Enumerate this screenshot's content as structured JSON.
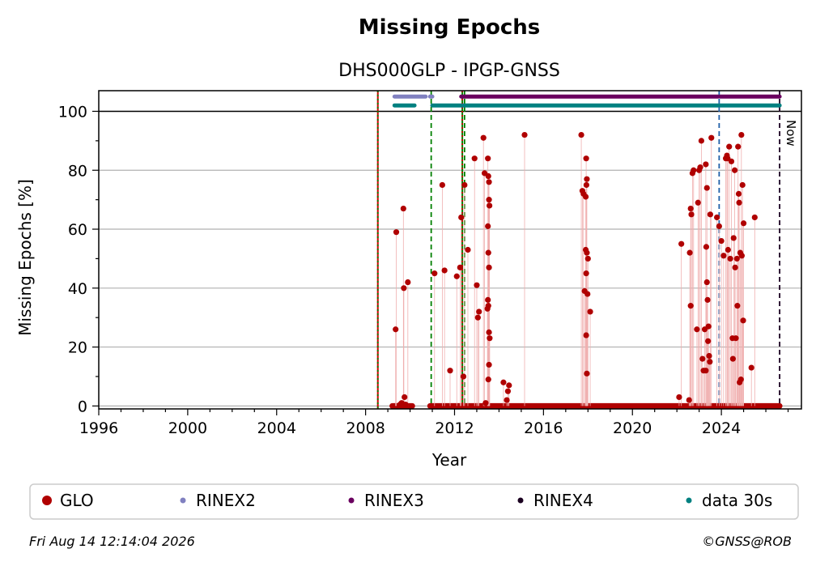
{
  "chart_data": {
    "type": "scatter",
    "title": "Missing Epochs",
    "subtitle": "DHS000GLP - IPGP-GNSS",
    "xlabel": "Year",
    "ylabel": "Missing Epochs [%]",
    "xlim": [
      1996,
      2027.6
    ],
    "ylim": [
      -1,
      107
    ],
    "xticks": [
      1996,
      2000,
      2004,
      2008,
      2012,
      2016,
      2020,
      2024
    ],
    "yticks": [
      0,
      20,
      40,
      60,
      80,
      100
    ],
    "grid": "y",
    "legend_position": "bottom",
    "now_label": "Now",
    "now_year": 2026.62,
    "footer_date": "Fri Aug 14 12:14:04 2026",
    "footer_credit": "©GNSS@ROB",
    "colors": {
      "glo": "#b00000",
      "rinex2": "#8080c0",
      "rinex3": "#6a005f",
      "rinex4": "#1a0020",
      "data30s": "#008080",
      "red_line": "#cc0000",
      "green_line": "#008000",
      "blue_line": "#1f5fa8"
    },
    "vertical_lines": [
      {
        "year": 2008.55,
        "style": "solid",
        "color": "red_line"
      },
      {
        "year": 2008.55,
        "style": "dotted",
        "color": "green_line"
      },
      {
        "year": 2010.95,
        "style": "dashed",
        "color": "green_line"
      },
      {
        "year": 2012.35,
        "style": "solid",
        "color": "green_line"
      },
      {
        "year": 2012.45,
        "style": "dashed",
        "color": "green_line"
      },
      {
        "year": 2012.35,
        "style": "dotted",
        "color": "red_line"
      },
      {
        "year": 2023.9,
        "style": "dashed",
        "color": "blue_line"
      },
      {
        "year": 2026.62,
        "style": "dashed",
        "color": "rinex4"
      }
    ],
    "bars": [
      {
        "name": "RINEX2",
        "y": 105,
        "ranges": [
          [
            2009.3,
            2010.7
          ],
          [
            2010.9,
            2011.0
          ]
        ]
      },
      {
        "name": "RINEX3",
        "y": 105,
        "ranges": [
          [
            2012.3,
            2023.85
          ],
          [
            2023.95,
            2026.62
          ]
        ]
      },
      {
        "name": "data 30s",
        "y": 102,
        "ranges": [
          [
            2009.3,
            2010.2
          ],
          [
            2011.0,
            2023.85
          ],
          [
            2023.95,
            2026.62
          ]
        ]
      }
    ],
    "zero_ranges": [
      [
        2009.2,
        2010.1
      ],
      [
        2010.9,
        2026.62
      ]
    ],
    "series": [
      {
        "name": "GLO",
        "points": [
          [
            2009.35,
            26
          ],
          [
            2009.38,
            59
          ],
          [
            2009.55,
            0.5
          ],
          [
            2009.62,
            1
          ],
          [
            2009.7,
            67
          ],
          [
            2009.72,
            40
          ],
          [
            2009.75,
            3
          ],
          [
            2009.8,
            0.5
          ],
          [
            2009.9,
            42
          ],
          [
            2011.1,
            45
          ],
          [
            2011.45,
            75
          ],
          [
            2011.55,
            46
          ],
          [
            2011.8,
            12
          ],
          [
            2012.1,
            44
          ],
          [
            2012.25,
            47
          ],
          [
            2012.3,
            64
          ],
          [
            2012.4,
            10
          ],
          [
            2012.45,
            75
          ],
          [
            2012.6,
            53
          ],
          [
            2012.9,
            84
          ],
          [
            2013.0,
            41
          ],
          [
            2013.05,
            30
          ],
          [
            2013.1,
            32
          ],
          [
            2013.3,
            91
          ],
          [
            2013.35,
            79
          ],
          [
            2013.4,
            1
          ],
          [
            2013.5,
            84
          ],
          [
            2013.52,
            78
          ],
          [
            2013.55,
            76
          ],
          [
            2013.55,
            70
          ],
          [
            2013.57,
            68
          ],
          [
            2013.5,
            61
          ],
          [
            2013.52,
            52
          ],
          [
            2013.55,
            47
          ],
          [
            2013.5,
            36
          ],
          [
            2013.52,
            34
          ],
          [
            2013.48,
            33
          ],
          [
            2013.55,
            25
          ],
          [
            2013.58,
            23
          ],
          [
            2013.55,
            14
          ],
          [
            2013.52,
            9
          ],
          [
            2014.2,
            8
          ],
          [
            2014.35,
            2
          ],
          [
            2014.4,
            5
          ],
          [
            2014.45,
            7
          ],
          [
            2015.15,
            92
          ],
          [
            2017.7,
            92
          ],
          [
            2017.75,
            73
          ],
          [
            2017.8,
            72
          ],
          [
            2017.85,
            39
          ],
          [
            2017.9,
            53
          ],
          [
            2017.92,
            84
          ],
          [
            2017.95,
            77
          ],
          [
            2017.93,
            75
          ],
          [
            2017.9,
            71
          ],
          [
            2017.95,
            52
          ],
          [
            2017.92,
            45
          ],
          [
            2017.98,
            38
          ],
          [
            2018.0,
            50
          ],
          [
            2017.92,
            24
          ],
          [
            2017.95,
            11
          ],
          [
            2018.1,
            32
          ],
          [
            2022.1,
            3
          ],
          [
            2022.2,
            55
          ],
          [
            2022.55,
            2
          ],
          [
            2022.58,
            52
          ],
          [
            2022.62,
            67
          ],
          [
            2022.65,
            65
          ],
          [
            2022.7,
            79
          ],
          [
            2022.62,
            34
          ],
          [
            2022.75,
            80
          ],
          [
            2022.9,
            26
          ],
          [
            2022.95,
            69
          ],
          [
            2023.0,
            80
          ],
          [
            2023.05,
            81
          ],
          [
            2023.1,
            90
          ],
          [
            2023.15,
            16
          ],
          [
            2023.2,
            12
          ],
          [
            2023.25,
            26
          ],
          [
            2023.3,
            12
          ],
          [
            2023.3,
            82
          ],
          [
            2023.35,
            74
          ],
          [
            2023.32,
            54
          ],
          [
            2023.35,
            42
          ],
          [
            2023.38,
            36
          ],
          [
            2023.42,
            27
          ],
          [
            2023.4,
            22
          ],
          [
            2023.45,
            17
          ],
          [
            2023.48,
            15
          ],
          [
            2023.5,
            65
          ],
          [
            2023.55,
            91
          ],
          [
            2023.8,
            64
          ],
          [
            2023.9,
            61
          ],
          [
            2024.0,
            56
          ],
          [
            2024.1,
            51
          ],
          [
            2024.2,
            84
          ],
          [
            2024.25,
            85
          ],
          [
            2024.28,
            84
          ],
          [
            2024.3,
            53
          ],
          [
            2024.35,
            88
          ],
          [
            2024.4,
            50
          ],
          [
            2024.45,
            83
          ],
          [
            2024.5,
            23
          ],
          [
            2024.52,
            16
          ],
          [
            2024.55,
            57
          ],
          [
            2024.6,
            80
          ],
          [
            2024.62,
            47
          ],
          [
            2024.65,
            23
          ],
          [
            2024.7,
            50
          ],
          [
            2024.72,
            34
          ],
          [
            2024.75,
            88
          ],
          [
            2024.78,
            72
          ],
          [
            2024.8,
            69
          ],
          [
            2024.82,
            8
          ],
          [
            2024.85,
            52
          ],
          [
            2024.88,
            9
          ],
          [
            2024.9,
            92
          ],
          [
            2024.92,
            51
          ],
          [
            2024.95,
            75
          ],
          [
            2024.98,
            29
          ],
          [
            2025.0,
            62
          ],
          [
            2025.35,
            13
          ],
          [
            2025.5,
            64
          ]
        ]
      }
    ],
    "legend": [
      "GLO",
      "RINEX2",
      "RINEX3",
      "RINEX4",
      "data 30s"
    ]
  }
}
